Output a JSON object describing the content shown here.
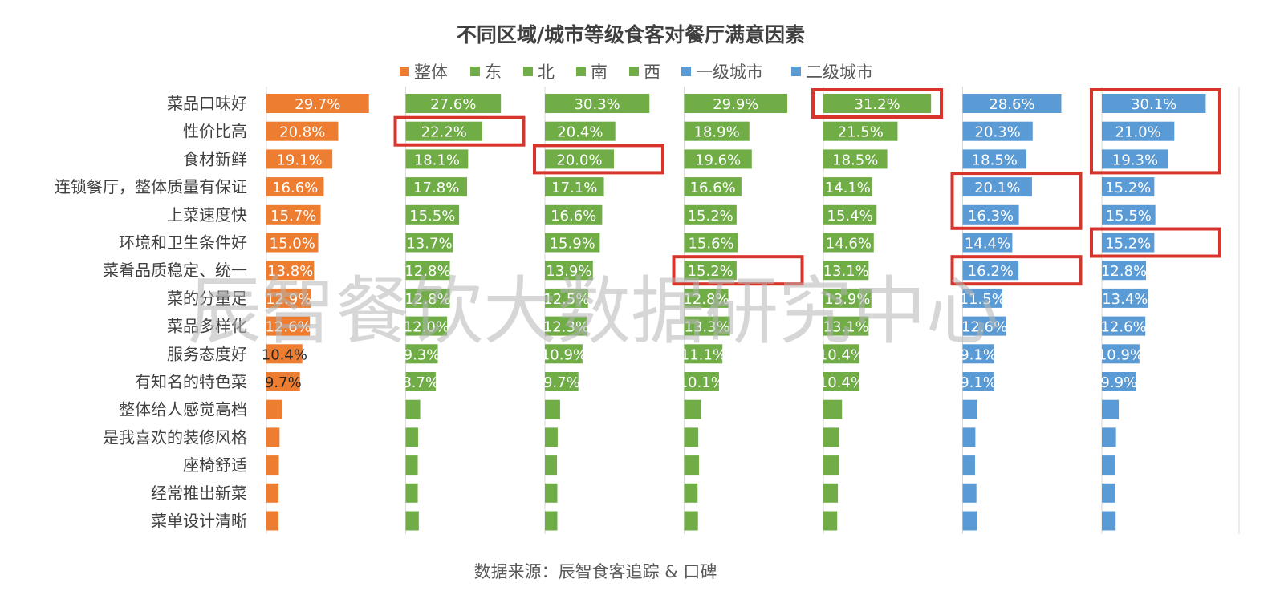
{
  "chart_data": {
    "type": "bar",
    "orientation": "horizontal",
    "layout": "small-multiples",
    "title": "不同区域/城市等级食客对餐厅满意因素",
    "categories": [
      "菜品口味好",
      "性价比高",
      "食材新鲜",
      "连锁餐厅，整体质量有保证",
      "上菜速度快",
      "环境和卫生条件好",
      "菜肴品质稳定、统一",
      "菜的分量足",
      "菜品多样化",
      "服务态度好",
      "有知名的特色菜",
      "整体给人感觉高档",
      "是我喜欢的装修风格",
      "座椅舒适",
      "经常推出新菜",
      "菜单设计清晰"
    ],
    "value_labels": [
      [
        "29.7%",
        "20.8%",
        "19.1%",
        "16.6%",
        "15.7%",
        "15.0%",
        "13.8%",
        "12.9%",
        "12.6%",
        "10.4%",
        "9.7%",
        "",
        "",
        "",
        "",
        ""
      ],
      [
        "27.6%",
        "22.2%",
        "18.1%",
        "17.8%",
        "15.5%",
        "13.7%",
        "12.8%",
        "12.8%",
        "12.0%",
        "9.3%",
        "8.7%",
        "",
        "",
        "",
        "",
        ""
      ],
      [
        "30.3%",
        "20.4%",
        "20.0%",
        "17.1%",
        "16.6%",
        "15.9%",
        "13.9%",
        "12.5%",
        "12.3%",
        "10.9%",
        "9.7%",
        "",
        "",
        "",
        "",
        ""
      ],
      [
        "29.9%",
        "18.9%",
        "19.6%",
        "16.6%",
        "15.2%",
        "15.6%",
        "15.2%",
        "12.8%",
        "13.3%",
        "11.1%",
        "10.1%",
        "",
        "",
        "",
        "",
        ""
      ],
      [
        "31.2%",
        "21.5%",
        "18.5%",
        "14.1%",
        "15.4%",
        "14.6%",
        "13.1%",
        "13.9%",
        "13.1%",
        "10.4%",
        "10.4%",
        "",
        "",
        "",
        "",
        ""
      ],
      [
        "28.6%",
        "20.3%",
        "18.5%",
        "20.1%",
        "16.3%",
        "14.4%",
        "16.2%",
        "11.5%",
        "12.6%",
        "9.1%",
        "9.1%",
        "",
        "",
        "",
        "",
        ""
      ],
      [
        "30.1%",
        "21.0%",
        "19.3%",
        "15.2%",
        "15.5%",
        "15.2%",
        "12.8%",
        "13.4%",
        "12.6%",
        "10.9%",
        "9.9%",
        "",
        "",
        "",
        "",
        ""
      ]
    ],
    "series": [
      {
        "name": "整体",
        "color": "#ed7d31",
        "values": [
          29.7,
          20.8,
          19.1,
          16.6,
          15.7,
          15.0,
          13.8,
          12.9,
          12.6,
          10.4,
          9.7,
          4.5,
          3.8,
          3.6,
          3.5,
          3.5
        ]
      },
      {
        "name": "东",
        "color": "#70ad47",
        "values": [
          27.6,
          22.2,
          18.1,
          17.8,
          15.5,
          13.7,
          12.8,
          12.8,
          12.0,
          9.3,
          8.7,
          4.2,
          3.6,
          3.5,
          3.5,
          3.8
        ]
      },
      {
        "name": "北",
        "color": "#70ad47",
        "values": [
          30.3,
          20.4,
          20.0,
          17.1,
          16.6,
          15.9,
          13.9,
          12.5,
          12.3,
          10.9,
          9.7,
          4.4,
          3.7,
          3.5,
          3.6,
          3.6
        ]
      },
      {
        "name": "南",
        "color": "#70ad47",
        "values": [
          29.9,
          18.9,
          19.6,
          16.6,
          15.2,
          15.6,
          15.2,
          12.8,
          13.3,
          11.1,
          10.1,
          5.0,
          4.1,
          4.3,
          3.9,
          4.0
        ]
      },
      {
        "name": "西",
        "color": "#70ad47",
        "values": [
          31.2,
          21.5,
          18.5,
          14.1,
          15.4,
          14.6,
          13.1,
          13.9,
          13.1,
          10.4,
          10.4,
          5.4,
          4.6,
          4.5,
          4.2,
          4.0
        ]
      },
      {
        "name": "一级城市",
        "color": "#5b9bd5",
        "values": [
          28.6,
          20.3,
          18.5,
          20.1,
          16.3,
          14.4,
          16.2,
          11.5,
          12.6,
          9.1,
          9.1,
          4.3,
          3.7,
          3.6,
          4.0,
          4.1
        ]
      },
      {
        "name": "二级城市",
        "color": "#5b9bd5",
        "values": [
          30.1,
          21.0,
          19.3,
          15.2,
          15.5,
          15.2,
          12.8,
          13.4,
          12.6,
          10.9,
          9.9,
          4.9,
          4.1,
          3.9,
          3.8,
          4.0
        ]
      }
    ],
    "highlighted": [
      {
        "series": "东",
        "categories": [
          "性价比高"
        ]
      },
      {
        "series": "北",
        "categories": [
          "食材新鲜"
        ]
      },
      {
        "series": "南",
        "categories": [
          "菜肴品质稳定、统一"
        ]
      },
      {
        "series": "西",
        "categories": [
          "菜品口味好"
        ]
      },
      {
        "series": "一级城市",
        "categories": [
          "连锁餐厅，整体质量有保证",
          "上菜速度快"
        ]
      },
      {
        "series": "一级城市",
        "categories": [
          "菜肴品质稳定、统一"
        ]
      },
      {
        "series": "二级城市",
        "categories": [
          "菜品口味好",
          "性价比高",
          "食材新鲜"
        ]
      },
      {
        "series": "二级城市",
        "categories": [
          "环境和卫生条件好"
        ]
      }
    ],
    "highlight_color": "#d9342b",
    "legend_position": "top",
    "grid": false,
    "watermark": "辰智餐饮大数据研究中心",
    "source": "数据来源：辰智食客追踪 & 口碑"
  }
}
